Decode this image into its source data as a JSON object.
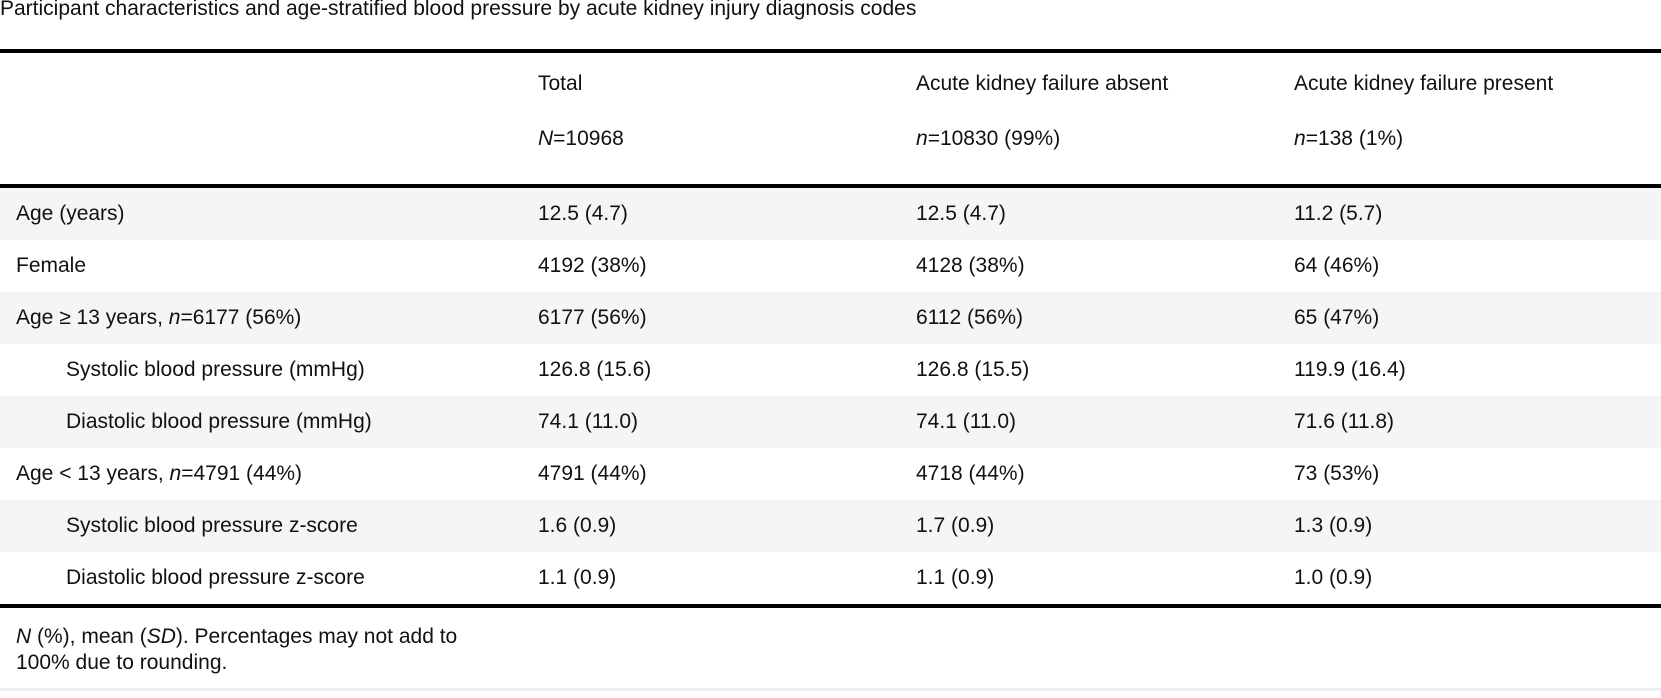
{
  "caption": "Participant characteristics and age-stratified blood pressure by acute kidney injury diagnosis codes",
  "table": {
    "columns": [
      {
        "title": "",
        "n_label": "",
        "n_value": ""
      },
      {
        "title": "Total",
        "n_label": "N",
        "n_value": "=10968"
      },
      {
        "title": "Acute kidney failure absent",
        "n_label": "n",
        "n_value": "=10830 (99%)"
      },
      {
        "title": "Acute kidney failure present",
        "n_label": "n",
        "n_value": "=138 (1%)"
      }
    ],
    "rows": [
      {
        "label": "Age (years)",
        "indent": false,
        "values": [
          "12.5 (4.7)",
          "12.5 (4.7)",
          "11.2 (5.7)"
        ]
      },
      {
        "label": "Female",
        "indent": false,
        "values": [
          "4192 (38%)",
          "4128 (38%)",
          "64 (46%)"
        ]
      },
      {
        "label_pre": "Age ≥ 13 years, ",
        "label_n": "n",
        "label_post": "=6177 (56%)",
        "indent": false,
        "values": [
          "6177 (56%)",
          "6112 (56%)",
          "65 (47%)"
        ]
      },
      {
        "label": "Systolic blood pressure (mmHg)",
        "indent": true,
        "values": [
          "126.8 (15.6)",
          "126.8 (15.5)",
          "119.9 (16.4)"
        ]
      },
      {
        "label": "Diastolic blood pressure (mmHg)",
        "indent": true,
        "values": [
          "74.1 (11.0)",
          "74.1 (11.0)",
          "71.6 (11.8)"
        ]
      },
      {
        "label_pre": "Age < 13 years, ",
        "label_n": "n",
        "label_post": "=4791 (44%)",
        "indent": false,
        "values": [
          "4791 (44%)",
          "4718 (44%)",
          "73 (53%)"
        ]
      },
      {
        "label": "Systolic blood pressure z-score",
        "indent": true,
        "values": [
          "1.6 (0.9)",
          "1.7 (0.9)",
          "1.3 (0.9)"
        ]
      },
      {
        "label": "Diastolic blood pressure z-score",
        "indent": true,
        "values": [
          "1.1 (0.9)",
          "1.1 (0.9)",
          "1.0 (0.9)"
        ]
      }
    ],
    "footnote": {
      "part1": "N",
      "part2": " (%), mean (",
      "part3": "SD",
      "part4": "). Percentages may not add to 100% due to rounding."
    }
  }
}
